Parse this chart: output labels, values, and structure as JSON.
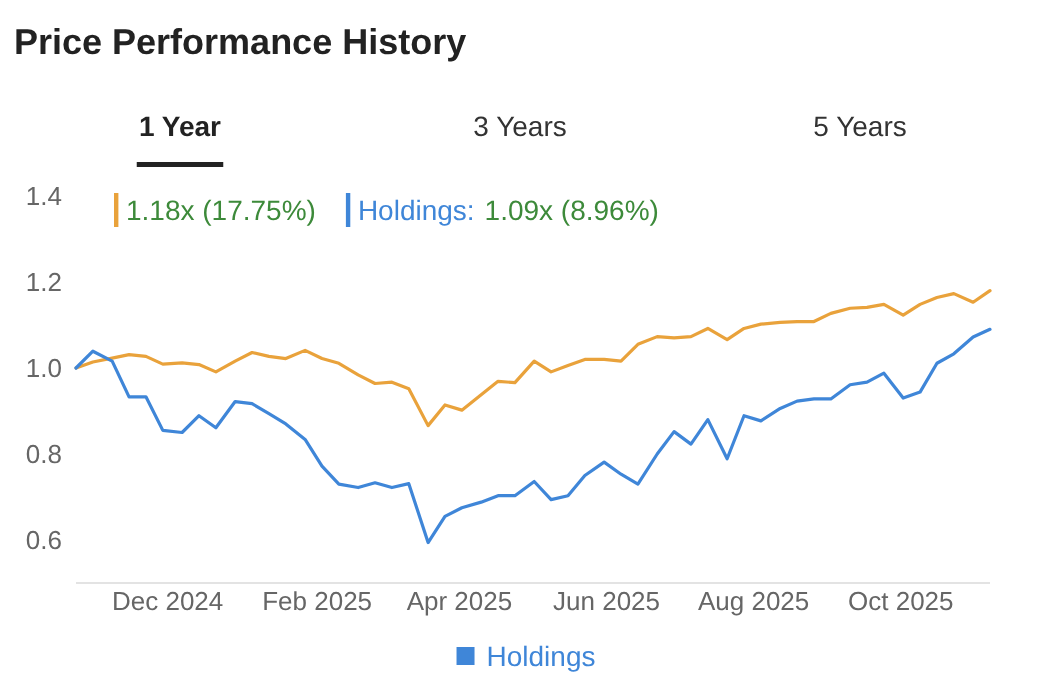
{
  "chart_data": {
    "type": "line",
    "title": "Price Performance History",
    "annotations": [
      "1 Year",
      "3 Years",
      "5 Years",
      "1.18x (17.75%)",
      "Holdings:",
      "1.09x (8.96%)"
    ],
    "x": [
      "2024-10-24",
      "2024-10-31",
      "2024-11-08",
      "2024-11-15",
      "2024-11-22",
      "2024-11-29",
      "2024-12-07",
      "2024-12-14",
      "2024-12-21",
      "2024-12-29",
      "2025-01-05",
      "2025-01-12",
      "2025-01-19",
      "2025-01-27",
      "2025-02-03",
      "2025-02-10",
      "2025-02-18",
      "2025-02-25",
      "2025-03-04",
      "2025-03-11",
      "2025-03-19",
      "2025-03-26",
      "2025-04-02",
      "2025-04-10",
      "2025-04-17",
      "2025-04-24",
      "2025-05-02",
      "2025-05-09",
      "2025-05-16",
      "2025-05-23",
      "2025-05-31",
      "2025-06-07",
      "2025-06-14",
      "2025-06-22",
      "2025-06-29",
      "2025-07-06",
      "2025-07-13",
      "2025-07-21",
      "2025-07-28",
      "2025-08-04",
      "2025-08-12",
      "2025-08-19",
      "2025-08-26",
      "2025-09-02",
      "2025-09-10",
      "2025-09-17",
      "2025-09-24",
      "2025-10-02",
      "2025-10-09",
      "2025-10-16",
      "2025-10-23",
      "2025-10-31",
      "2025-11-07"
    ],
    "xlim": [
      "2024-10-24",
      "2025-11-07"
    ],
    "xticks": [
      {
        "value": "2024-12-01",
        "label": "Dec 2024"
      },
      {
        "value": "2025-02-01",
        "label": "Feb 2025"
      },
      {
        "value": "2025-04-01",
        "label": "Apr 2025"
      },
      {
        "value": "2025-06-01",
        "label": "Jun 2025"
      },
      {
        "value": "2025-08-01",
        "label": "Aug 2025"
      },
      {
        "value": "2025-10-01",
        "label": "Oct 2025"
      }
    ],
    "ylim": [
      0.5,
      1.4
    ],
    "yticks": [
      0.6,
      0.8,
      {
        "value": 1,
        "label": "1.0"
      },
      1.2,
      1.4
    ],
    "series": [
      {
        "color": "#e9a23b",
        "values": [
          1.0,
          1.014,
          1.023,
          1.031,
          1.027,
          1.009,
          1.012,
          1.008,
          0.991,
          1.016,
          1.036,
          1.027,
          1.022,
          1.041,
          1.022,
          1.011,
          0.984,
          0.964,
          0.967,
          0.952,
          0.866,
          0.914,
          0.902,
          0.938,
          0.969,
          0.966,
          1.016,
          0.991,
          1.006,
          1.02,
          1.02,
          1.016,
          1.055,
          1.073,
          1.07,
          1.073,
          1.092,
          1.066,
          1.092,
          1.102,
          1.106,
          1.108,
          1.108,
          1.127,
          1.139,
          1.141,
          1.148,
          1.123,
          1.148,
          1.164,
          1.173,
          1.153,
          1.18
        ]
      },
      {
        "name": "Holdings",
        "color": "#3f86d8",
        "values": [
          1.0,
          1.039,
          1.016,
          0.933,
          0.933,
          0.855,
          0.85,
          0.889,
          0.861,
          0.922,
          0.917,
          0.894,
          0.87,
          0.834,
          0.772,
          0.73,
          0.722,
          0.733,
          0.722,
          0.731,
          0.594,
          0.655,
          0.675,
          0.688,
          0.703,
          0.703,
          0.736,
          0.694,
          0.703,
          0.75,
          0.781,
          0.753,
          0.73,
          0.8,
          0.852,
          0.823,
          0.88,
          0.789,
          0.889,
          0.877,
          0.906,
          0.923,
          0.928,
          0.928,
          0.961,
          0.967,
          0.988,
          0.93,
          0.944,
          1.011,
          1.033,
          1.072,
          1.09
        ]
      }
    ],
    "legend": "bottom"
  }
}
